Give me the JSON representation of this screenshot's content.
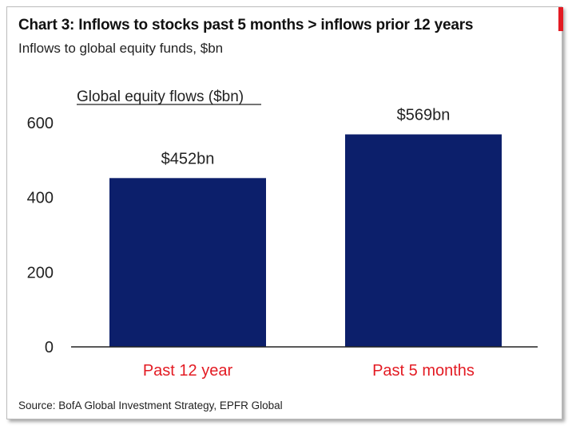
{
  "header": {
    "title": "Chart 3: Inflows to stocks past 5 months > inflows prior 12 years",
    "subtitle": "Inflows to global equity funds, $bn"
  },
  "colors": {
    "bar": "#0c1f6b",
    "category_label": "#e31b23",
    "accent": "#e31b23",
    "axis": "#222222"
  },
  "chart_data": {
    "type": "bar",
    "title": "Chart 3: Inflows to stocks past 5 months > inflows prior 12 years",
    "subtitle": "Inflows to global equity funds, $bn",
    "series_label": "Global equity flows ($bn)",
    "categories": [
      "Past 12 year",
      "Past 5 months"
    ],
    "values": [
      452,
      569
    ],
    "data_labels": [
      "$452bn",
      "$569bn"
    ],
    "ylim": [
      0,
      600
    ],
    "yticks": [
      0,
      200,
      400,
      600
    ],
    "ytick_labels": [
      "0",
      "200",
      "400",
      "600"
    ],
    "grid": false,
    "legend": "none"
  },
  "footer": {
    "source": "Source:  BofA Global Investment Strategy, EPFR Global"
  }
}
